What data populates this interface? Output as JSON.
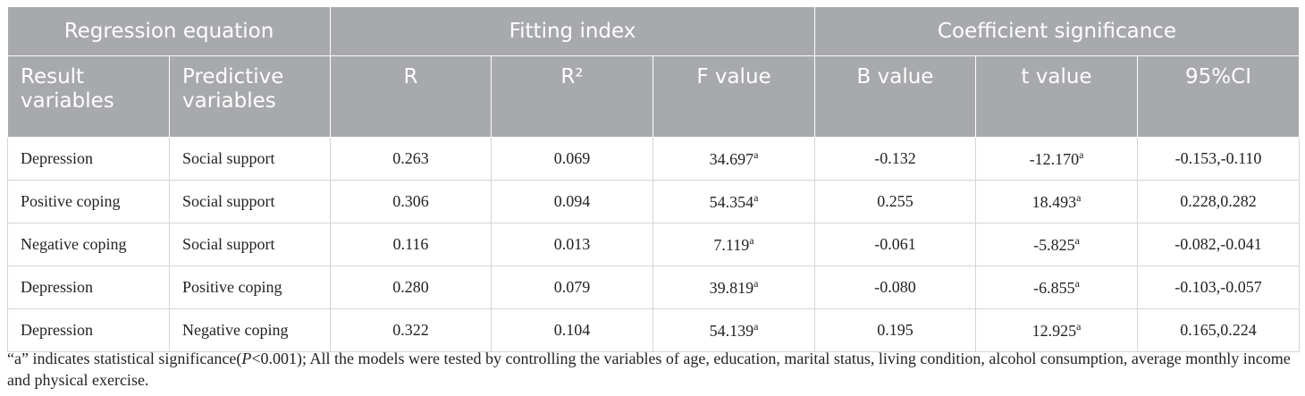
{
  "table": {
    "groups": [
      "Regression equation",
      "Fitting index",
      "Coefficient significance"
    ],
    "columns": [
      "Result variables",
      "Predictive variables",
      "R",
      "R²",
      "F value",
      "B value",
      "t value",
      "95%CI"
    ],
    "rows": [
      [
        "Depression",
        "Social support",
        "0.263",
        "0.069",
        {
          "text": "34.697",
          "sup": "a"
        },
        "-0.132",
        {
          "text": "-12.170",
          "sup": "a"
        },
        "-0.153,-0.110"
      ],
      [
        "Positive coping",
        "Social support",
        "0.306",
        "0.094",
        {
          "text": "54.354",
          "sup": "a"
        },
        "0.255",
        {
          "text": "18.493",
          "sup": "a"
        },
        "0.228,0.282"
      ],
      [
        "Negative coping",
        "Social support",
        "0.116",
        "0.013",
        {
          "text": "7.119",
          "sup": "a"
        },
        "-0.061",
        {
          "text": "-5.825",
          "sup": "a"
        },
        "-0.082,-0.041"
      ],
      [
        "Depression",
        "Positive coping",
        "0.280",
        "0.079",
        {
          "text": "39.819",
          "sup": "a"
        },
        "-0.080",
        {
          "text": "-6.855",
          "sup": "a"
        },
        "-0.103,-0.057"
      ],
      [
        "Depression",
        "Negative coping",
        "0.322",
        "0.104",
        {
          "text": "54.139",
          "sup": "a"
        },
        "0.195",
        {
          "text": "12.925",
          "sup": "a"
        },
        "0.165,0.224"
      ]
    ]
  },
  "footnote": [
    "“a” indicates statistical significance(",
    "P",
    "<0.001); All the models were tested by controlling the variables of age, education, marital status, living condition, alcohol consumption, average monthly income and physical exercise."
  ]
}
